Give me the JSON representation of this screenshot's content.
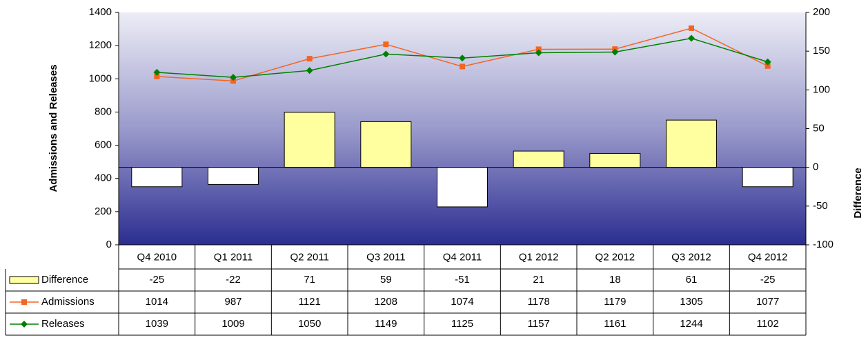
{
  "chart_data": {
    "type": "combo",
    "categories": [
      "Q4 2010",
      "Q1 2011",
      "Q2 2011",
      "Q3 2011",
      "Q4 2011",
      "Q1 2012",
      "Q2 2012",
      "Q3 2012",
      "Q4 2012"
    ],
    "series": [
      {
        "name": "Difference",
        "type": "bar",
        "axis": "y2",
        "color": "#ffffa0",
        "negative_color": "#ffffff",
        "values": [
          -25,
          -22,
          71,
          59,
          -51,
          21,
          18,
          61,
          -25
        ]
      },
      {
        "name": "Admissions",
        "type": "line",
        "color": "#f26522",
        "marker": "square",
        "values": [
          1014,
          987,
          1121,
          1208,
          1074,
          1178,
          1179,
          1305,
          1077
        ]
      },
      {
        "name": "Releases",
        "type": "line",
        "color": "#008000",
        "marker": "diamond",
        "values": [
          1039,
          1009,
          1050,
          1149,
          1125,
          1157,
          1161,
          1244,
          1102
        ]
      }
    ],
    "ylabel": "Admissions and Releases",
    "y2label": "Difference",
    "ylim": [
      0,
      1400
    ],
    "yticks": [
      0,
      200,
      400,
      600,
      800,
      1000,
      1200,
      1400
    ],
    "y2lim": [
      -100,
      200
    ],
    "y2ticks": [
      -100,
      -50,
      0,
      50,
      100,
      150,
      200
    ]
  }
}
